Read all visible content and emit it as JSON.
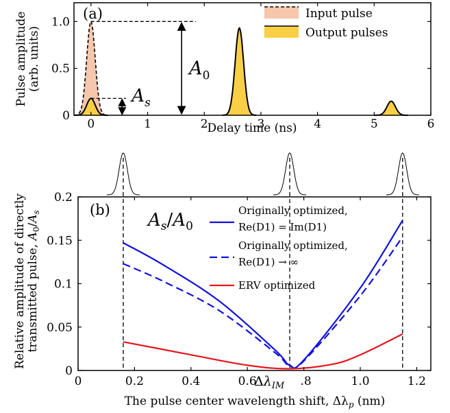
{
  "chart_data": [
    {
      "panel": "(a)",
      "type": "area",
      "xlabel": "Delay time (ns)",
      "ylabel_line1": "Pulse amplitude",
      "ylabel_line2": "(arb. units)",
      "xlim": [
        -0.3,
        6.0
      ],
      "ylim": [
        0,
        1.2
      ],
      "xticks": [
        0,
        1,
        2,
        3,
        4,
        5,
        6
      ],
      "yticks": [
        0,
        0.5,
        1.0
      ],
      "ytick_labels": [
        "0",
        "0.5",
        "1.0"
      ],
      "pulse_width_ns": 0.075,
      "series": [
        {
          "name": "Input pulse",
          "style": "dashed",
          "fill": "#f6c6ad",
          "pulses": [
            {
              "center": 0.0,
              "amplitude": 1.0
            }
          ]
        },
        {
          "name": "Output pulses",
          "style": "solid",
          "fill": "#f9cf46",
          "pulses": [
            {
              "center": 0.0,
              "amplitude": 0.18
            },
            {
              "center": 2.62,
              "amplitude": 0.93
            },
            {
              "center": 5.3,
              "amplitude": 0.15
            }
          ]
        }
      ],
      "annotations": {
        "A0": {
          "symbol": "A",
          "sub": "0",
          "x": 1.6,
          "from": 0,
          "to": 1.0
        },
        "As": {
          "symbol": "A",
          "sub": "s",
          "x": 0.55,
          "from": 0,
          "to": 0.18
        }
      }
    },
    {
      "panel": "(b)",
      "type": "line",
      "xlabel_text": "The pulse center wavelength shift, ",
      "xlabel_symbol": "Δλ",
      "xlabel_sub": "p",
      "xlabel_unit": " (nm)",
      "ylabel_line1": "Relative amplitude of  directly",
      "ylabel_line2_text": "transmitted pulse, ",
      "ylabel_line2_math": "A0/As",
      "inset_label": "As/A0",
      "xlim": [
        0,
        1.25
      ],
      "ylim": [
        0,
        0.2
      ],
      "xticks": [
        0,
        0.2,
        0.4,
        0.6,
        0.8,
        1.0,
        1.2
      ],
      "xtick_labels": [
        "0",
        "0.2",
        "0.4",
        "0.6",
        "0.8",
        "1.0",
        "1.2"
      ],
      "yticks": [
        0,
        0.05,
        0.1,
        0.15,
        0.2
      ],
      "ytick_labels": [
        "0",
        "0.05",
        "0.1",
        "0.15",
        "0.2"
      ],
      "marker_lines": [
        0.16,
        0.75,
        1.15
      ],
      "marker_label": "ΔλIM",
      "series": [
        {
          "name": "Originally optimized, Re(D1) = Im(D1)",
          "color": "#1010e0",
          "style": "solid",
          "x": [
            0.16,
            0.3,
            0.5,
            0.7,
            0.75,
            0.8,
            1.0,
            1.15
          ],
          "y": [
            0.147,
            0.122,
            0.08,
            0.023,
            0.006,
            0.012,
            0.095,
            0.173
          ]
        },
        {
          "name": "Originally optimized, Re(D1) → ∞",
          "color": "#1010e0",
          "style": "dashed",
          "x": [
            0.16,
            0.3,
            0.5,
            0.7,
            0.75,
            0.8,
            1.0,
            1.15
          ],
          "y": [
            0.123,
            0.103,
            0.069,
            0.02,
            0.005,
            0.011,
            0.086,
            0.154
          ]
        },
        {
          "name": "ERV optimized",
          "color": "#e8141c",
          "style": "solid",
          "x": [
            0.16,
            0.4,
            0.6,
            0.75,
            0.9,
            1.0,
            1.15
          ],
          "y": [
            0.033,
            0.018,
            0.006,
            0.002,
            0.007,
            0.018,
            0.042
          ]
        }
      ],
      "legend": [
        {
          "line1": "Originally optimized,",
          "line2": "Re(D1) = Im(D1)"
        },
        {
          "line1": "Originally optimized,",
          "line2": "Re(D1) → ∞"
        },
        {
          "line1": "ERV optimized"
        }
      ]
    }
  ]
}
